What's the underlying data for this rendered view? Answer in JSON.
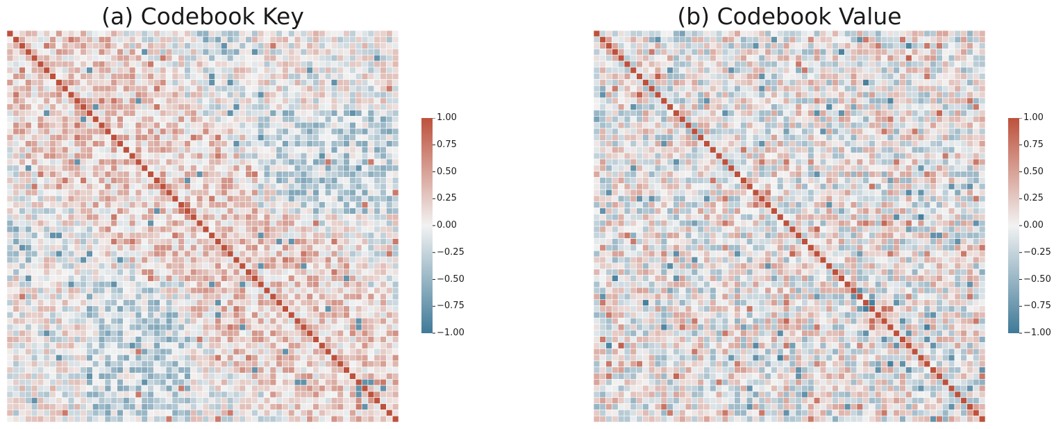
{
  "figure": {
    "colors": {
      "negative": "#3f7a98",
      "neutral": "#f2f2f2",
      "positive": "#bd513c",
      "gridline": "#ffffff"
    }
  },
  "chart_data": [
    {
      "type": "heatmap",
      "title": "(a) Codebook Key",
      "matrix_size": 64,
      "vmin": -1.0,
      "vmax": 1.0,
      "diagonal_value": 1.0,
      "colorbar_ticks": [
        "1.00",
        "0.75",
        "0.50",
        "0.25",
        "0.00",
        "−0.25",
        "−0.50",
        "−0.75",
        "−1.00"
      ],
      "axes_visible": false,
      "pattern": "correlation matrix; off-diagonal values mostly in [-0.6, 0.5], strong dark diagonal; reddish band near the diagonal, bluish blocks off-diagonal",
      "seed": 17
    },
    {
      "type": "heatmap",
      "title": "(b) Codebook Value",
      "matrix_size": 64,
      "vmin": -1.0,
      "vmax": 1.0,
      "diagonal_value": 1.0,
      "colorbar_ticks": [
        "1.00",
        "0.75",
        "0.50",
        "0.25",
        "0.00",
        "−0.25",
        "−0.50",
        "−0.75",
        "−1.00"
      ],
      "axes_visible": false,
      "pattern": "correlation matrix; off-diagonal values more scattered in [-0.7, 0.6], strong dark diagonal, a few 2-3 cell red blocks on the diagonal",
      "seed": 53
    }
  ]
}
